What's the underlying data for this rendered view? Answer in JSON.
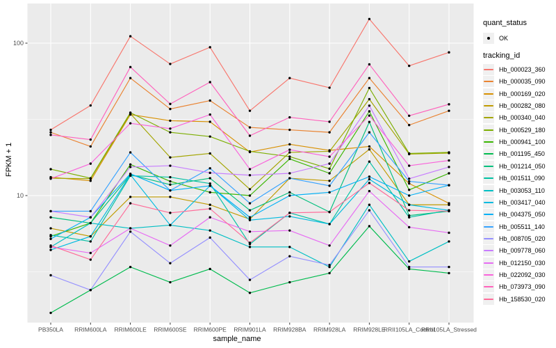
{
  "legend": {
    "quant_status_title": "quant_status",
    "quant_status_value": "OK",
    "tracking_title": "tracking_id"
  },
  "colors": {
    "panel_bg": "#EBEBEB",
    "grid": "#FFFFFF",
    "point": "#000000",
    "tick_label": "#4D4D4D",
    "legend_key_bg": "#F0F0F0"
  },
  "chart_data": {
    "type": "line",
    "title": "",
    "xlabel": "sample_name",
    "ylabel": "FPKM + 1",
    "y_scale": "log10",
    "ylim": [
      1.4,
      176
    ],
    "y_ticks": [
      10,
      100
    ],
    "y_minor_ticks": [
      3.162,
      31.62
    ],
    "grid": "white major/minor on gray panel",
    "legend_position": "right",
    "point_marker": "small black point (quant_status OK)",
    "categories": [
      "PB350LA",
      "RRIM600LA",
      "RRIM600LE",
      "RRIM600SE",
      "RRIM600PE",
      "RRIM901LA",
      "RRIM928BA",
      "RRIM928LA",
      "RRIM928LE",
      "RRII105LA_Control",
      "RRII105LA_Stressed"
    ],
    "series": [
      {
        "name": "Hb_000023_360",
        "color": "#F8766D",
        "values": [
          27,
          39,
          111,
          73,
          94,
          36,
          59,
          51,
          144,
          71,
          87
        ]
      },
      {
        "name": "Hb_000035_090",
        "color": "#EA8331",
        "values": [
          26,
          21,
          59,
          37,
          42,
          28,
          27,
          26,
          59,
          29,
          36
        ]
      },
      {
        "name": "Hb_000169_020",
        "color": "#D89000",
        "values": [
          13.2,
          12.5,
          34,
          31,
          30.5,
          19.3,
          21.7,
          19.8,
          21,
          12,
          8.9
        ]
      },
      {
        "name": "Hb_000282_080",
        "color": "#C09B00",
        "values": [
          6.1,
          5.4,
          9.8,
          9.8,
          8.7,
          7,
          13,
          12.5,
          20.1,
          8.7,
          8.7
        ]
      },
      {
        "name": "Hb_000340_040",
        "color": "#A3A500",
        "values": [
          13,
          12.9,
          34.5,
          17.8,
          18.9,
          11,
          19.2,
          19.5,
          42.9,
          18.7,
          19
        ]
      },
      {
        "name": "Hb_000529_180",
        "color": "#7CAE00",
        "values": [
          14.9,
          13,
          35,
          26,
          24.4,
          19.5,
          18,
          15,
          50.8,
          18.9,
          19.2
        ]
      },
      {
        "name": "Hb_000941_100",
        "color": "#39B600",
        "values": [
          5.4,
          6.6,
          16,
          12.4,
          10.5,
          10,
          17.4,
          14,
          35.7,
          10.9,
          14
        ]
      },
      {
        "name": "Hb_001195_450",
        "color": "#00BB4E",
        "values": [
          1.7,
          2.4,
          3.4,
          2.7,
          3.3,
          2.3,
          2.7,
          3.1,
          6.3,
          3.3,
          3.1
        ]
      },
      {
        "name": "Hb_001214_050",
        "color": "#00BF7D",
        "values": [
          7.2,
          6.6,
          13.7,
          11.8,
          13,
          8,
          10.5,
          7.8,
          30.4,
          7.4,
          7.9
        ]
      },
      {
        "name": "Hb_001511_090",
        "color": "#00C1A3",
        "values": [
          5.5,
          5,
          13.5,
          13.2,
          12,
          4.8,
          7.7,
          6.5,
          16.7,
          7.2,
          8
        ]
      },
      {
        "name": "Hb_003053_110",
        "color": "#00BFC4",
        "values": [
          4.6,
          6.6,
          6.1,
          6.4,
          5.9,
          4.6,
          4.6,
          3.4,
          8.7,
          3.7,
          5
        ]
      },
      {
        "name": "Hb_003417_040",
        "color": "#00BAE0",
        "values": [
          4.4,
          5.4,
          13.7,
          6.4,
          11.6,
          6.9,
          7.3,
          6.5,
          12.8,
          8.7,
          8
        ]
      },
      {
        "name": "Hb_004375_050",
        "color": "#00B0F6",
        "values": [
          5.2,
          7.2,
          13.9,
          10.8,
          11.6,
          7.2,
          10,
          10.5,
          13.3,
          10,
          11.7
        ]
      },
      {
        "name": "Hb_005511_140",
        "color": "#35A2FF",
        "values": [
          7.9,
          7.9,
          19.2,
          10.8,
          15.1,
          8.9,
          13,
          11.6,
          26,
          12.4,
          11.7
        ]
      },
      {
        "name": "Hb_008705_020",
        "color": "#9590FF",
        "values": [
          3,
          2.4,
          5.8,
          3.6,
          5.3,
          2.8,
          4,
          3.5,
          8,
          3.4,
          3.4
        ]
      },
      {
        "name": "Hb_009778_060",
        "color": "#C77CFF",
        "values": [
          7.9,
          7.2,
          15.4,
          15.7,
          14.1,
          13.6,
          14,
          16.2,
          38.9,
          12.9,
          15.4
        ]
      },
      {
        "name": "Hb_012150_030",
        "color": "#E76BF3",
        "values": [
          4.6,
          4.2,
          6.1,
          4.7,
          7.2,
          5.8,
          5.9,
          4.7,
          10.7,
          6.2,
          5.7
        ]
      },
      {
        "name": "Hb_022092_030",
        "color": "#FA62DB",
        "values": [
          12.9,
          16.2,
          29.8,
          27.5,
          34,
          14.9,
          20,
          18,
          33.5,
          15.7,
          17
        ]
      },
      {
        "name": "Hb_073973_090",
        "color": "#FF62BC",
        "values": [
          25,
          23.3,
          69.7,
          39.9,
          55.5,
          24.7,
          32.6,
          30.5,
          72.6,
          33.4,
          39.7
        ]
      },
      {
        "name": "Hb_158530_020",
        "color": "#FF6A98",
        "values": [
          4.7,
          3.8,
          8.9,
          7.7,
          8.2,
          4.9,
          7.7,
          7.8,
          12.1,
          8,
          7.9
        ]
      }
    ]
  }
}
